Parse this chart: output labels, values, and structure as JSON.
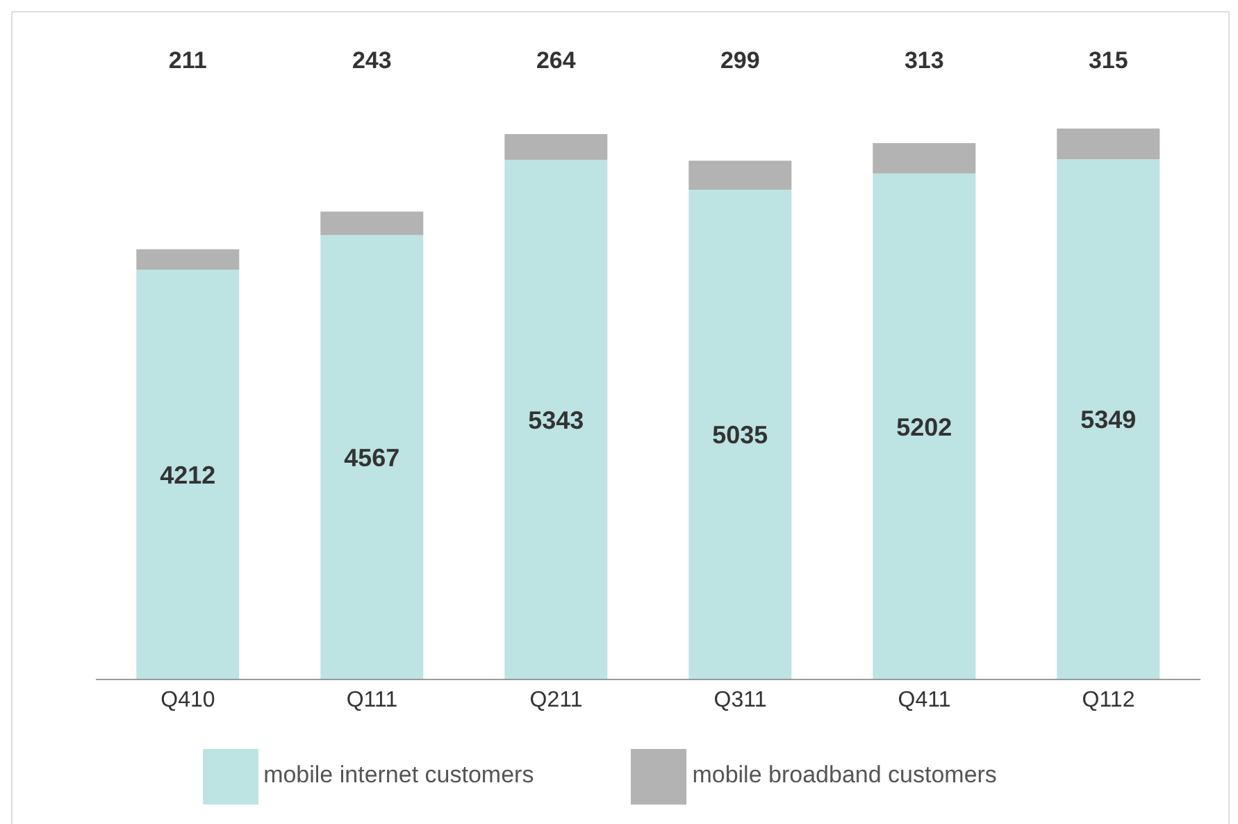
{
  "chart_data": {
    "type": "bar",
    "stacked": true,
    "data_labels": true,
    "legend": "bottom",
    "categories": [
      "Q410",
      "Q111",
      "Q211",
      "Q311",
      "Q411",
      "Q112"
    ],
    "series": [
      {
        "name": "mobile internet customers",
        "color": "#bde3e3",
        "values": [
          4212,
          4567,
          5343,
          5035,
          5202,
          5349
        ]
      },
      {
        "name": "mobile broadband customers",
        "color": "#b3b3b3",
        "values": [
          211,
          243,
          264,
          299,
          313,
          315
        ]
      }
    ]
  }
}
